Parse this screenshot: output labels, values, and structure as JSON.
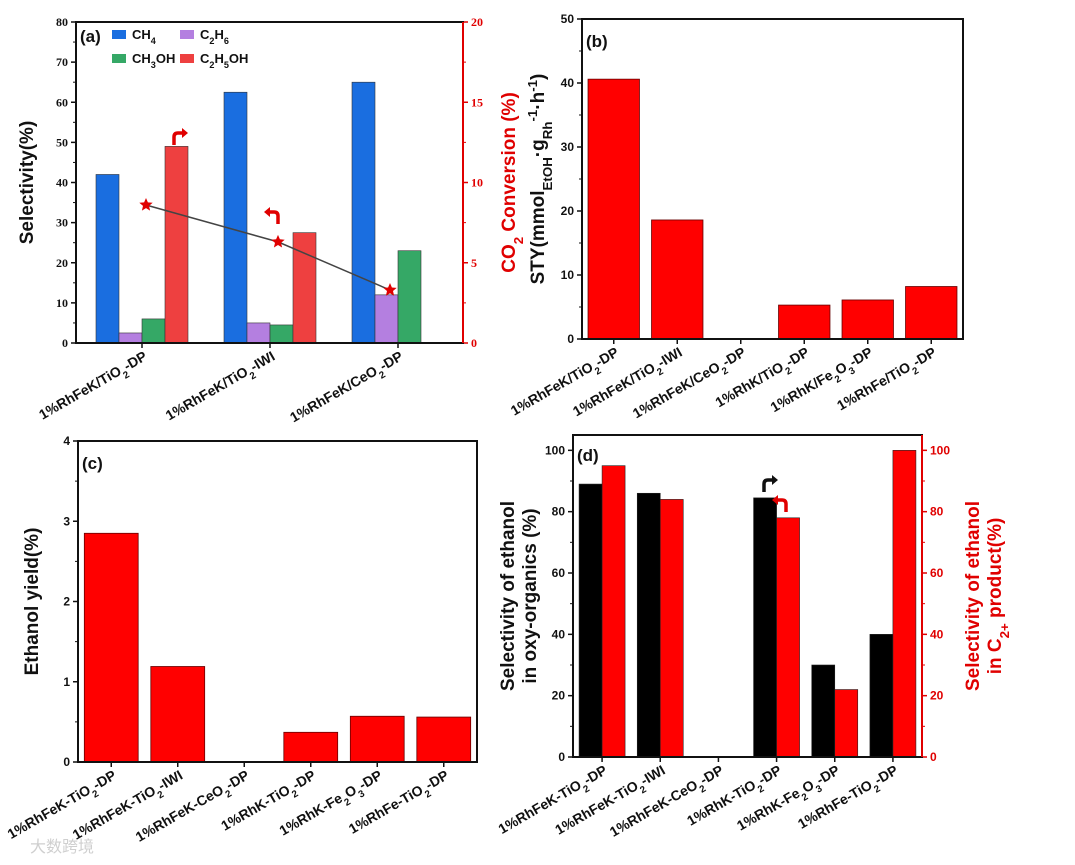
{
  "watermark": "大数跨境",
  "chart_data": [
    {
      "panel": "(a)",
      "type": "bar",
      "categories": [
        "1%RhFeK/TiO_{2}-DP",
        "1%RhFeK/TiO_{2}-IWI",
        "1%RhFeK/CeO_{2}-DP"
      ],
      "series": [
        {
          "name": "CH_{4}",
          "color": "#1a6ee0",
          "values": [
            42,
            62.5,
            65
          ]
        },
        {
          "name": "C_{2}H_{6}",
          "color": "#b47fe0",
          "values": [
            2.5,
            5,
            12
          ]
        },
        {
          "name": "CH_{3}OH",
          "color": "#35a866",
          "values": [
            6,
            4.5,
            23
          ]
        },
        {
          "name": "C_{2}H_{5}OH",
          "color": "#ee4040",
          "values": [
            49,
            27.5,
            0
          ]
        }
      ],
      "line_series": {
        "name": "CO_{2} Conversion",
        "axis": "right",
        "color": "#e00000",
        "marker": "star",
        "values": [
          8.6,
          6.3,
          3.3
        ]
      },
      "ylabel": "Selectivity(%)",
      "ylim": [
        0,
        80
      ],
      "yticks": [
        0,
        10,
        20,
        30,
        40,
        50,
        60,
        70,
        80
      ],
      "y2label": "CO_{2} Conversion (%)",
      "y2lim": [
        0,
        20
      ],
      "y2ticks": [
        0,
        5,
        10,
        15,
        20
      ],
      "legend": "top-left"
    },
    {
      "panel": "(b)",
      "type": "bar",
      "categories": [
        "1%RhFeK/TiO_{2}-DP",
        "1%RhFeK/TiO_{2}-IWI",
        "1%RhFeK/CeO_{2}-DP",
        "1%RhK/TiO_{2}-DP",
        "1%RhK/Fe_{2}O_{3}-DP",
        "1%RhFe/TiO_{2}-DP"
      ],
      "values": [
        40.6,
        18.6,
        0,
        5.3,
        6.1,
        8.2
      ],
      "color": "#ff0000",
      "ylabel": "STY(mmol_{EtOH}·g_{Rh}^{-1}·h^{-1})",
      "ylim": [
        0,
        50
      ],
      "yticks": [
        0,
        10,
        20,
        30,
        40,
        50
      ]
    },
    {
      "panel": "(c)",
      "type": "bar",
      "categories": [
        "1%RhFeK-TiO_{2}-DP",
        "1%RhFeK-TiO_{2}-IWI",
        "1%RhFeK-CeO_{2}-DP",
        "1%RhK-TiO_{2}-DP",
        "1%RhK-Fe_{2}O_{3}-DP",
        "1%RhFe-TiO_{2}-DP"
      ],
      "values": [
        2.85,
        1.19,
        0,
        0.37,
        0.57,
        0.56
      ],
      "color": "#ff0000",
      "ylabel": "Ethanol yield(%)",
      "ylim": [
        0,
        4
      ],
      "yticks": [
        0,
        1,
        2,
        3,
        4
      ]
    },
    {
      "panel": "(d)",
      "type": "bar",
      "categories": [
        "1%RhFeK-TiO_{2}-DP",
        "1%RhFeK-TiO_{2}-IWI",
        "1%RhFeK-CeO_{2}-DP",
        "1%RhK-TiO_{2}-DP",
        "1%RhK-Fe_{2}O_{3}-DP",
        "1%RhFe-TiO_{2}-DP"
      ],
      "series": [
        {
          "name": "Selectivity of ethanol in oxy-organics",
          "axis": "left",
          "color": "#000000",
          "values": [
            89,
            86,
            0,
            84.5,
            30,
            40
          ]
        },
        {
          "name": "Selectivity of ethanol in C2+ product",
          "axis": "right",
          "color": "#ff0000",
          "values": [
            95,
            84,
            0,
            78,
            22,
            100
          ]
        }
      ],
      "ylabel": [
        "Selectivity of ethanol",
        "in oxy-organics (%)"
      ],
      "ylim": [
        0,
        105
      ],
      "yticks": [
        0,
        20,
        40,
        60,
        80,
        100
      ],
      "y2label": [
        "Selectivity of ethanol",
        "in C_{2+} product(%)"
      ],
      "y2lim": [
        0,
        105
      ],
      "y2ticks": [
        0,
        20,
        40,
        60,
        80,
        100
      ]
    }
  ]
}
